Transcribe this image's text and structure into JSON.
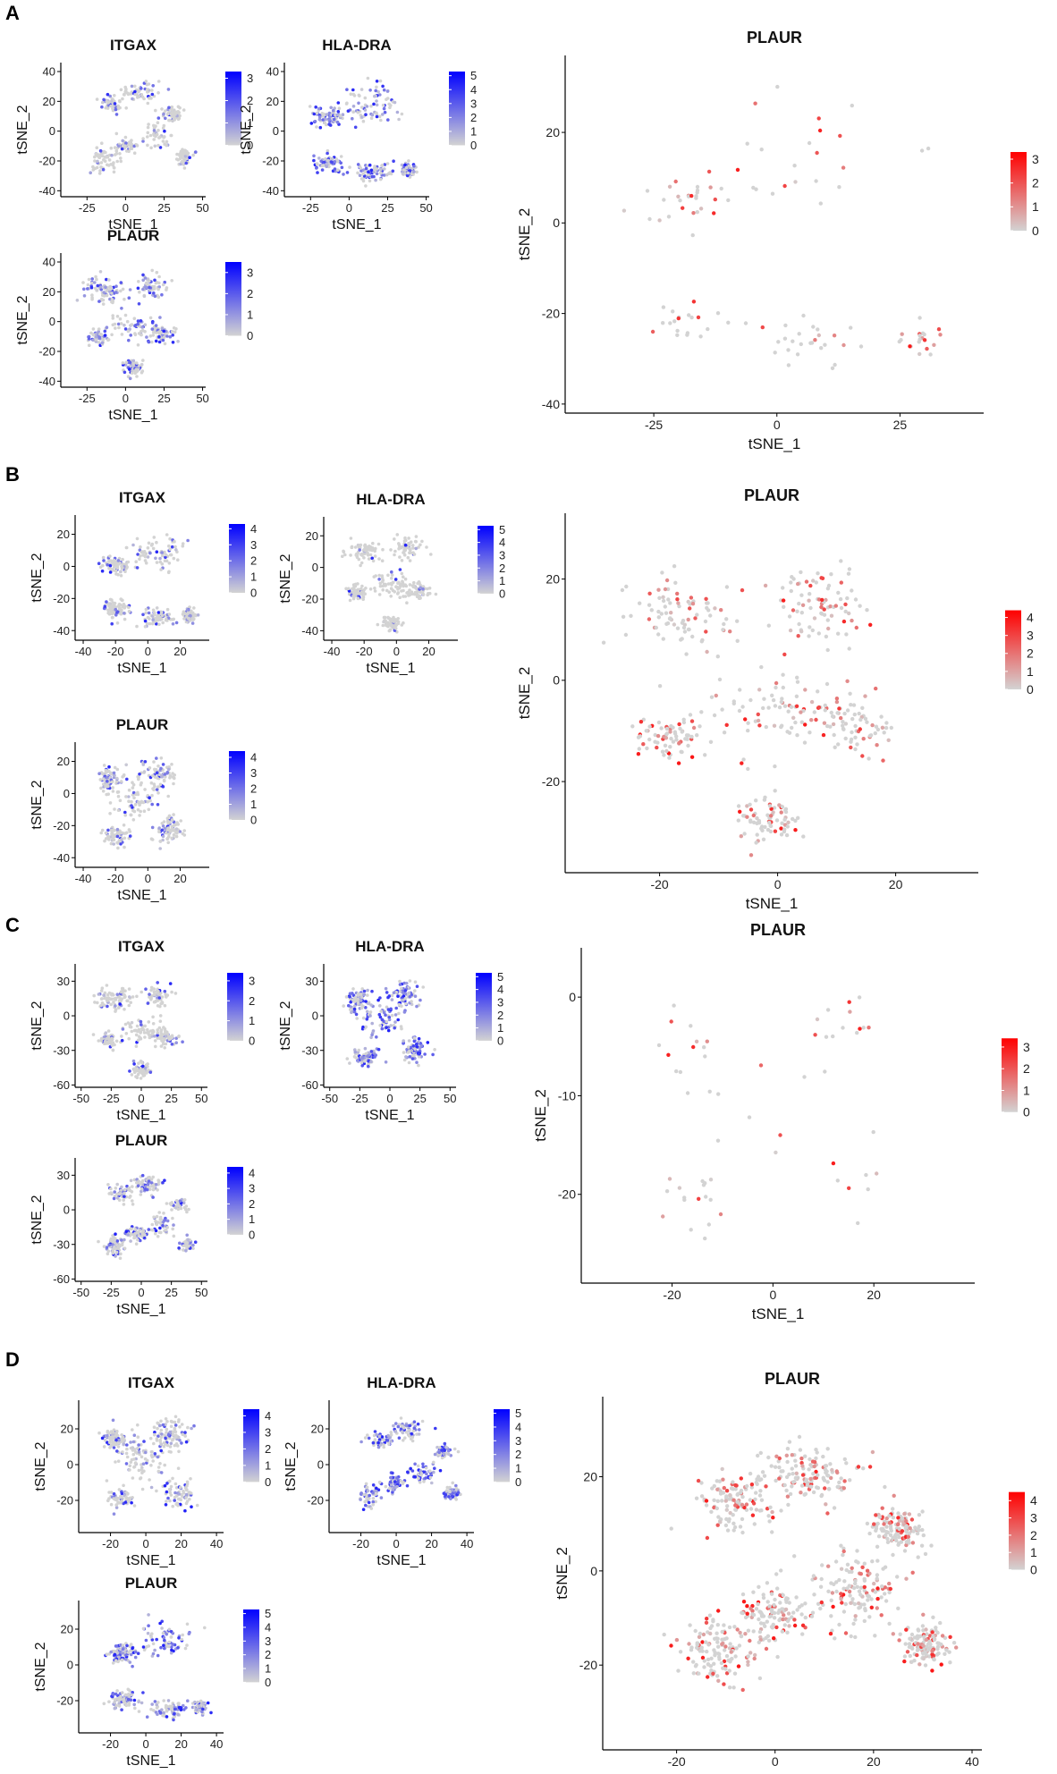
{
  "figure": {
    "colors": {
      "small_low": "#d3d3d3",
      "small_high": "#0000ff",
      "big_low": "#d3d3d3",
      "big_high": "#ff0000"
    }
  },
  "chart_data": [
    {
      "panel": "A",
      "small": [
        {
          "title": "ITGAX",
          "type": "scatter",
          "xlabel": "tSNE_1",
          "ylabel": "tSNE_2",
          "x_ticks": [
            -25,
            0,
            25,
            50
          ],
          "y_ticks": [
            -40,
            -20,
            0,
            20,
            40
          ],
          "xlim": [
            -42,
            52
          ],
          "ylim": [
            -44,
            46
          ],
          "legend_ticks": [
            0,
            1,
            2,
            3
          ],
          "legend_max": 3.3,
          "density": 0.25
        },
        {
          "title": "HLA-DRA",
          "type": "scatter",
          "xlabel": "tSNE_1",
          "ylabel": "tSNE_2",
          "x_ticks": [
            -25,
            0,
            25,
            50
          ],
          "y_ticks": [
            -40,
            -20,
            0,
            20,
            40
          ],
          "xlim": [
            -42,
            52
          ],
          "ylim": [
            -44,
            46
          ],
          "legend_ticks": [
            0,
            1,
            2,
            3,
            4,
            5
          ],
          "legend_max": 5.3,
          "density": 0.6
        },
        {
          "title": "PLAUR",
          "type": "scatter",
          "xlabel": "tSNE_1",
          "ylabel": "tSNE_2",
          "x_ticks": [
            -25,
            0,
            25,
            50
          ],
          "y_ticks": [
            -40,
            -20,
            0,
            20,
            40
          ],
          "xlim": [
            -42,
            52
          ],
          "ylim": [
            -44,
            46
          ],
          "legend_ticks": [
            0,
            1,
            2,
            3
          ],
          "legend_max": 3.5,
          "density": 0.5
        }
      ],
      "big": {
        "title": "PLAUR",
        "type": "scatter",
        "xlabel": "tSNE_1",
        "ylabel": "tSNE_2",
        "x_ticks": [
          -25,
          0,
          25
        ],
        "y_ticks": [
          -40,
          -20,
          0,
          20
        ],
        "xlim": [
          -43,
          42
        ],
        "ylim": [
          -42,
          37
        ],
        "legend_ticks": [
          0,
          1,
          2,
          3
        ],
        "legend_max": 3.3,
        "n_points": 120
      }
    },
    {
      "panel": "B",
      "small": [
        {
          "title": "ITGAX",
          "type": "scatter",
          "xlabel": "tSNE_1",
          "ylabel": "tSNE_2",
          "x_ticks": [
            -40,
            -20,
            0,
            20
          ],
          "y_ticks": [
            -40,
            -20,
            0,
            20
          ],
          "xlim": [
            -45,
            38
          ],
          "ylim": [
            -46,
            32
          ],
          "legend_ticks": [
            0,
            1,
            2,
            3,
            4
          ],
          "legend_max": 4.3,
          "density": 0.25
        },
        {
          "title": "HLA-DRA",
          "type": "scatter",
          "xlabel": "tSNE_1",
          "ylabel": "tSNE_2",
          "x_ticks": [
            -40,
            -20,
            0,
            20
          ],
          "y_ticks": [
            -40,
            -20,
            0,
            20
          ],
          "xlim": [
            -45,
            38
          ],
          "ylim": [
            -46,
            32
          ],
          "legend_ticks": [
            0,
            1,
            2,
            3,
            4,
            5
          ],
          "legend_max": 5.3,
          "density": 0.1
        },
        {
          "title": "PLAUR",
          "type": "scatter",
          "xlabel": "tSNE_1",
          "ylabel": "tSNE_2",
          "x_ticks": [
            -40,
            -20,
            0,
            20
          ],
          "y_ticks": [
            -40,
            -20,
            0,
            20
          ],
          "xlim": [
            -45,
            38
          ],
          "ylim": [
            -46,
            32
          ],
          "legend_ticks": [
            0,
            1,
            2,
            3,
            4
          ],
          "legend_max": 4.4,
          "density": 0.3
        }
      ],
      "big": {
        "title": "PLAUR",
        "type": "scatter",
        "xlabel": "tSNE_1",
        "ylabel": "tSNE_2",
        "x_ticks": [
          -20,
          0,
          20
        ],
        "y_ticks": [
          -20,
          0,
          20
        ],
        "xlim": [
          -36,
          34
        ],
        "ylim": [
          -38,
          33
        ],
        "legend_ticks": [
          0,
          1,
          2,
          3,
          4
        ],
        "legend_max": 4.4,
        "n_points": 480
      }
    },
    {
      "panel": "C",
      "small": [
        {
          "title": "ITGAX",
          "type": "scatter",
          "xlabel": "tSNE_1",
          "ylabel": "tSNE_2",
          "x_ticks": [
            -50,
            -25,
            0,
            25,
            50
          ],
          "y_ticks": [
            -60,
            -30,
            0,
            30
          ],
          "xlim": [
            -55,
            55
          ],
          "ylim": [
            -62,
            45
          ],
          "legend_ticks": [
            0,
            1,
            2,
            3
          ],
          "legend_max": 3.4,
          "density": 0.2
        },
        {
          "title": "HLA-DRA",
          "type": "scatter",
          "xlabel": "tSNE_1",
          "ylabel": "tSNE_2",
          "x_ticks": [
            -50,
            -25,
            0,
            25,
            50
          ],
          "y_ticks": [
            -60,
            -30,
            0,
            30
          ],
          "xlim": [
            -55,
            55
          ],
          "ylim": [
            -62,
            45
          ],
          "legend_ticks": [
            0,
            1,
            2,
            3,
            4,
            5
          ],
          "legend_max": 5.3,
          "density": 0.65
        },
        {
          "title": "PLAUR",
          "type": "scatter",
          "xlabel": "tSNE_1",
          "ylabel": "tSNE_2",
          "x_ticks": [
            -50,
            -25,
            0,
            25,
            50
          ],
          "y_ticks": [
            -60,
            -30,
            0,
            30
          ],
          "xlim": [
            -55,
            55
          ],
          "ylim": [
            -62,
            45
          ],
          "legend_ticks": [
            0,
            1,
            2,
            3,
            4
          ],
          "legend_max": 4.4,
          "density": 0.4
        }
      ],
      "big": {
        "title": "PLAUR",
        "type": "scatter",
        "xlabel": "tSNE_1",
        "ylabel": "tSNE_2",
        "x_ticks": [
          -20,
          0,
          20
        ],
        "y_ticks": [
          -20,
          -10,
          0
        ],
        "xlim": [
          -38,
          40
        ],
        "ylim": [
          -29,
          5
        ],
        "legend_ticks": [
          0,
          1,
          2,
          3
        ],
        "legend_max": 3.4,
        "n_points": 60
      }
    },
    {
      "panel": "D",
      "small": [
        {
          "title": "ITGAX",
          "type": "scatter",
          "xlabel": "tSNE_1",
          "ylabel": "tSNE_2",
          "x_ticks": [
            -20,
            0,
            20,
            40
          ],
          "y_ticks": [
            -20,
            0,
            20
          ],
          "xlim": [
            -38,
            44
          ],
          "ylim": [
            -38,
            36
          ],
          "legend_ticks": [
            0,
            1,
            2,
            3,
            4
          ],
          "legend_max": 4.4,
          "density": 0.35
        },
        {
          "title": "HLA-DRA",
          "type": "scatter",
          "xlabel": "tSNE_1",
          "ylabel": "tSNE_2",
          "x_ticks": [
            -20,
            0,
            20,
            40
          ],
          "y_ticks": [
            -20,
            0,
            20
          ],
          "xlim": [
            -38,
            44
          ],
          "ylim": [
            -38,
            36
          ],
          "legend_ticks": [
            0,
            1,
            2,
            3,
            4,
            5
          ],
          "legend_max": 5.3,
          "density": 0.7
        },
        {
          "title": "PLAUR",
          "type": "scatter",
          "xlabel": "tSNE_1",
          "ylabel": "tSNE_2",
          "x_ticks": [
            -20,
            0,
            20,
            40
          ],
          "y_ticks": [
            -20,
            0,
            20
          ],
          "xlim": [
            -38,
            44
          ],
          "ylim": [
            -38,
            36
          ],
          "legend_ticks": [
            0,
            1,
            2,
            3,
            4,
            5
          ],
          "legend_max": 5.3,
          "density": 0.6
        }
      ],
      "big": {
        "title": "PLAUR",
        "type": "scatter",
        "xlabel": "tSNE_1",
        "ylabel": "tSNE_2",
        "x_ticks": [
          -20,
          0,
          20,
          40
        ],
        "y_ticks": [
          -20,
          0,
          20
        ],
        "xlim": [
          -35,
          42
        ],
        "ylim": [
          -38,
          37
        ],
        "legend_ticks": [
          0,
          1,
          2,
          3,
          4
        ],
        "legend_max": 4.5,
        "n_points": 900
      }
    }
  ]
}
